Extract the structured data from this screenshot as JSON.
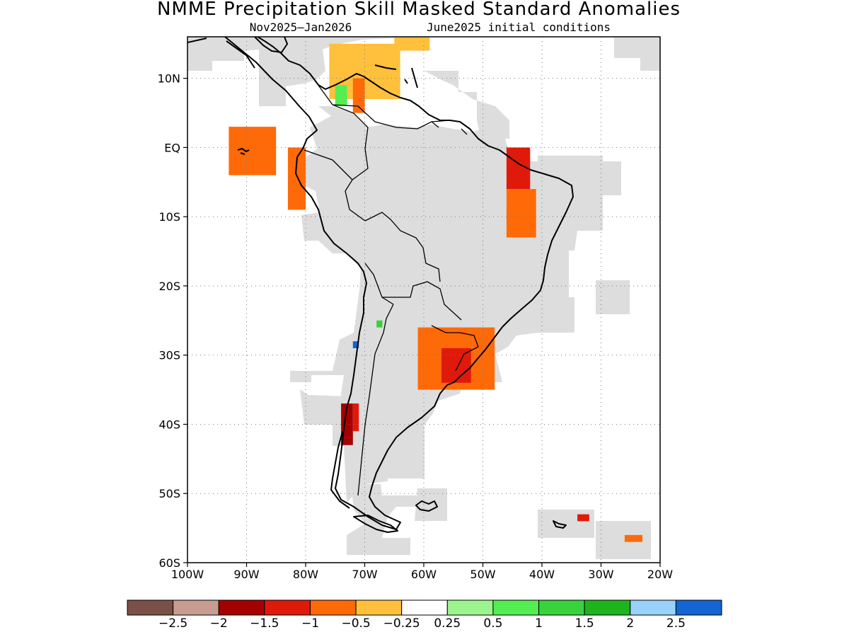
{
  "title": "NMME Precipitation Skill Masked Standard Anomalies",
  "subtitle": {
    "period": "Nov2025–Jan2026",
    "init": "June2025 initial conditions"
  },
  "map": {
    "extent": {
      "lon_min": -100,
      "lon_max": -20,
      "lat_min": -60,
      "lat_max": 16
    },
    "lon_ticks": [
      {
        "value": -100,
        "label": "100W"
      },
      {
        "value": -90,
        "label": "90W"
      },
      {
        "value": -80,
        "label": "80W"
      },
      {
        "value": -70,
        "label": "70W"
      },
      {
        "value": -60,
        "label": "60W"
      },
      {
        "value": -50,
        "label": "50W"
      },
      {
        "value": -40,
        "label": "40W"
      },
      {
        "value": -30,
        "label": "30W"
      },
      {
        "value": -20,
        "label": "20W"
      }
    ],
    "lat_ticks": [
      {
        "value": 10,
        "label": "10N"
      },
      {
        "value": 0,
        "label": "EQ"
      },
      {
        "value": -10,
        "label": "10S"
      },
      {
        "value": -20,
        "label": "20S"
      },
      {
        "value": -30,
        "label": "30S"
      },
      {
        "value": -40,
        "label": "40S"
      },
      {
        "value": -50,
        "label": "50S"
      },
      {
        "value": -60,
        "label": "60S"
      }
    ],
    "masked_color": "#dddddd",
    "anomaly_regions": [
      {
        "name": "caribbean-colombia",
        "value": -0.5,
        "lon": [
          -76,
          -64
        ],
        "lat": [
          7,
          15
        ]
      },
      {
        "name": "colombia-core",
        "value": -1,
        "lon": [
          -72,
          -70
        ],
        "lat": [
          5,
          10
        ]
      },
      {
        "name": "caribbean-north",
        "value": -0.5,
        "lon": [
          -65,
          -59
        ],
        "lat": [
          14,
          16
        ]
      },
      {
        "name": "galapagos",
        "value": -1,
        "lon": [
          -93,
          -85
        ],
        "lat": [
          -4,
          3
        ]
      },
      {
        "name": "ecuador-peru-coast",
        "value": -1,
        "lon": [
          -83,
          -80
        ],
        "lat": [
          -9,
          0
        ]
      },
      {
        "name": "ne-brazil-north",
        "value": -1.5,
        "lon": [
          -46,
          -42
        ],
        "lat": [
          -6,
          0
        ]
      },
      {
        "name": "ne-brazil-south",
        "value": -1,
        "lon": [
          -46,
          -41
        ],
        "lat": [
          -13,
          -6
        ]
      },
      {
        "name": "se-south-america",
        "value": -1,
        "lon": [
          -61,
          -48
        ],
        "lat": [
          -35,
          -26
        ]
      },
      {
        "name": "uruguay-core",
        "value": -1.5,
        "lon": [
          -57,
          -52
        ],
        "lat": [
          -34,
          -29
        ]
      },
      {
        "name": "southern-chile-north",
        "value": -2,
        "lon": [
          -74,
          -72
        ],
        "lat": [
          -43,
          -37
        ]
      },
      {
        "name": "southern-chile-core",
        "value": -1.5,
        "lon": [
          -72,
          -71
        ],
        "lat": [
          -41,
          -37
        ]
      },
      {
        "name": "south-atlantic-island",
        "value": -1.5,
        "lon": [
          -34,
          -32
        ],
        "lat": [
          -54,
          -53
        ]
      },
      {
        "name": "south-atlantic-east",
        "value": -1,
        "lon": [
          -26,
          -23
        ],
        "lat": [
          -57,
          -56
        ]
      },
      {
        "name": "venezuela-green",
        "value": 0.5,
        "lon": [
          -75,
          -73
        ],
        "lat": [
          6,
          9
        ]
      },
      {
        "name": "argentina-green",
        "value": 1,
        "lon": [
          -68,
          -67
        ],
        "lat": [
          -26,
          -25
        ]
      },
      {
        "name": "chile-blue",
        "value": 2.5,
        "lon": [
          -72,
          -71
        ],
        "lat": [
          -29,
          -28
        ]
      }
    ]
  },
  "colorbar": {
    "colors": [
      "#7b5047",
      "#c79c91",
      "#a50000",
      "#e01a0b",
      "#ff6a08",
      "#ffc03c",
      "#ffffff",
      "#9af58c",
      "#52ee52",
      "#37d23c",
      "#1eb41e",
      "#96d2fa",
      "#1464d2"
    ],
    "labels": [
      "−2.5",
      "−2",
      "−1.5",
      "−1",
      "−0.5",
      "−0.25",
      "0.25",
      "0.5",
      "1",
      "1.5",
      "2",
      "2.5"
    ]
  }
}
